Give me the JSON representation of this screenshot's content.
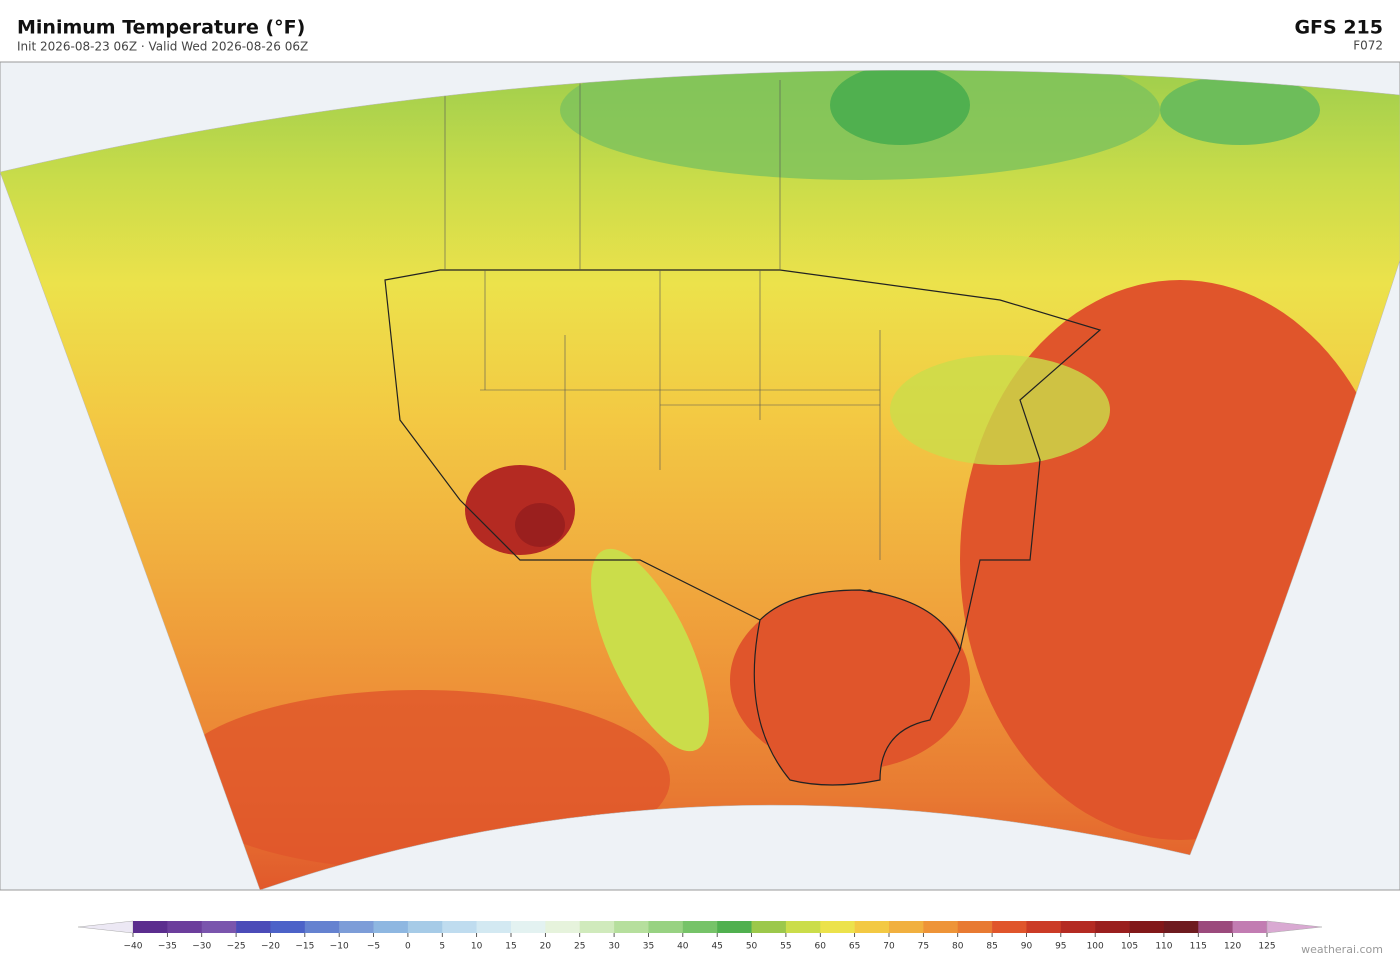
{
  "header": {
    "title": "Minimum Temperature  (°F)",
    "subtitle": "Init 2026-08-23 06Z  ·  Valid Wed 2026-08-26 06Z",
    "model": "GFS  215",
    "forecast_hour": "F072"
  },
  "colorbar": {
    "ticks": [
      {
        "value": -40,
        "label": "−40"
      },
      {
        "value": -35,
        "label": "−35"
      },
      {
        "value": -30,
        "label": "−30"
      },
      {
        "value": -25,
        "label": "−25"
      },
      {
        "value": -20,
        "label": "−20"
      },
      {
        "value": -15,
        "label": "−15"
      },
      {
        "value": -10,
        "label": "−10"
      },
      {
        "value": -5,
        "label": "−5"
      },
      0,
      5,
      10,
      15,
      20,
      25,
      30,
      35,
      40,
      45,
      50,
      55,
      60,
      65,
      70,
      75,
      80,
      85,
      90,
      95,
      100,
      105,
      110,
      115,
      120,
      125
    ],
    "colors": [
      "#5b2d8e",
      "#6c3e9c",
      "#7a55ad",
      "#4b4bb8",
      "#4c62c8",
      "#6582d0",
      "#7d9dd8",
      "#8eb7e1",
      "#a6cbe7",
      "#bfdcef",
      "#d3e9f2",
      "#e3f2f1",
      "#e6f3dc",
      "#d0eabc",
      "#b6df9d",
      "#98d282",
      "#76c368",
      "#50b04f",
      "#9cc84b",
      "#cbdd4a",
      "#ece24b",
      "#f3c943",
      "#f1b03f",
      "#ee9438",
      "#e87a32",
      "#e0552b",
      "#cb3b26",
      "#b42a22",
      "#9a1f1e",
      "#821819",
      "#6e1b1f",
      "#9b4a7c",
      "#c27cb2"
    ],
    "under_color": "#ece8f4",
    "over_color": "#d9a9d2"
  },
  "footer": {
    "credit": "weatherai.com"
  }
}
